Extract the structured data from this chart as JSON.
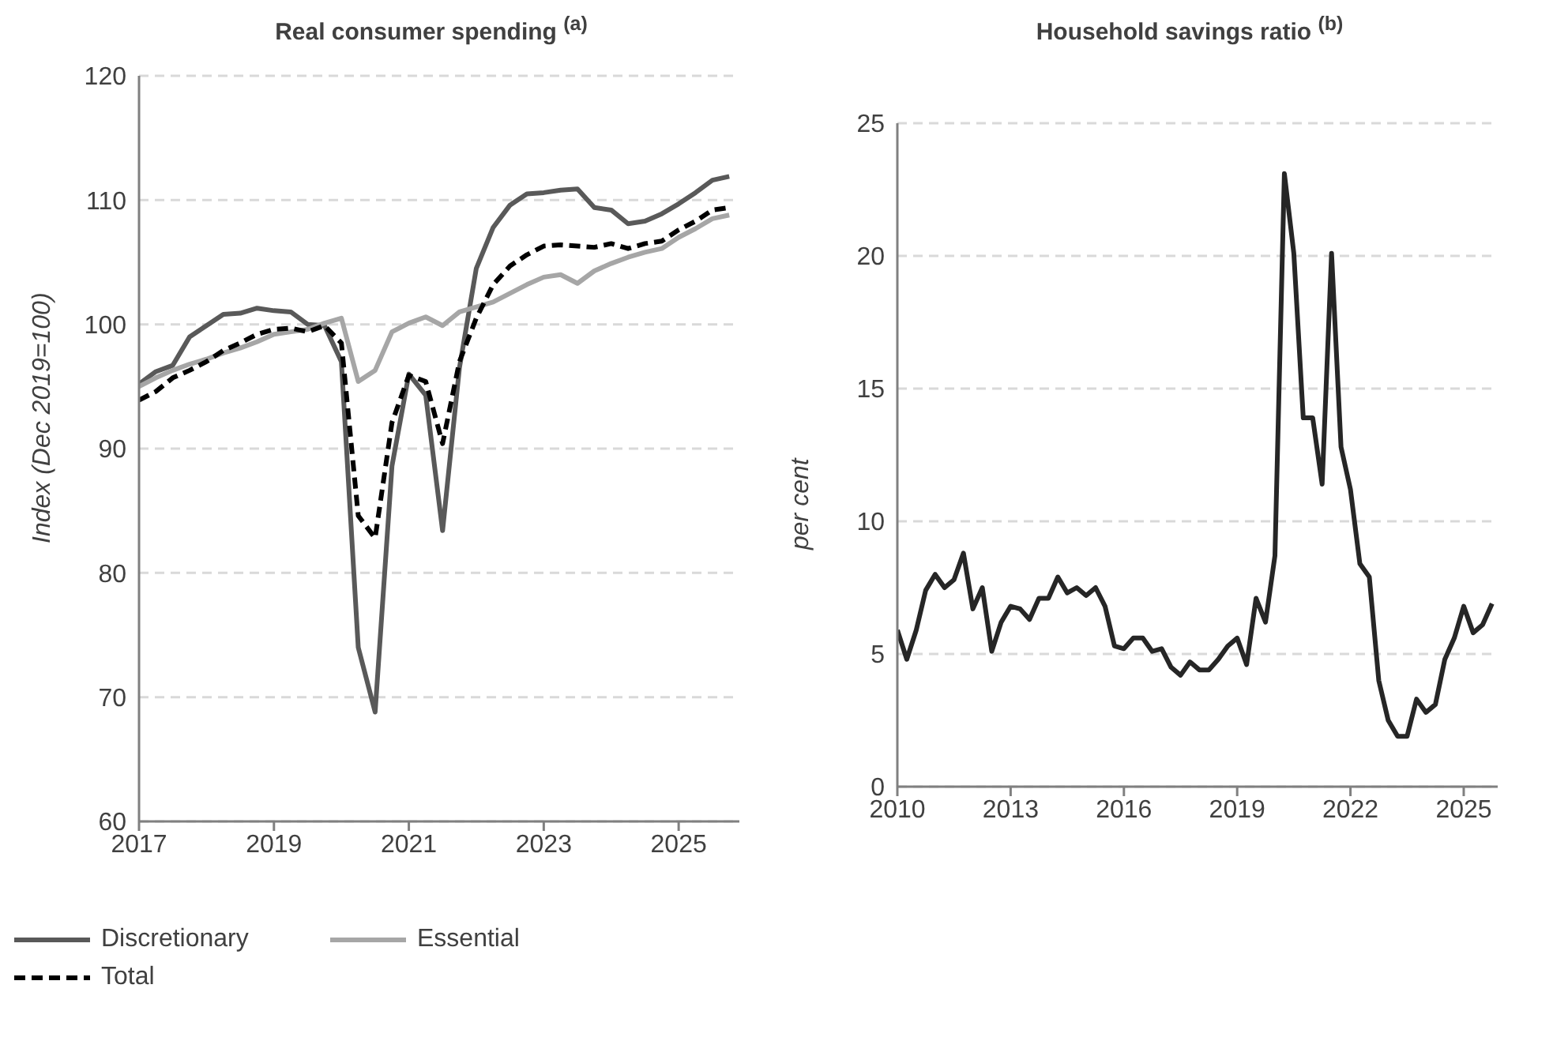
{
  "chart_data": [
    {
      "type": "line",
      "title": "Real consumer spending $^{(a)}$",
      "ylabel": "Index (Dec 2019=100)",
      "xlim": [
        2017,
        2025.9
      ],
      "xticks": [
        2017,
        2019,
        2021,
        2023,
        2025
      ],
      "ylim": [
        60,
        120
      ],
      "yticks": [
        60,
        70,
        80,
        90,
        100,
        110,
        120
      ],
      "grid": "y",
      "legend": "bottom",
      "marker": "none",
      "x": [
        2017,
        2017.25,
        2017.5,
        2017.75,
        2018,
        2018.25,
        2018.5,
        2018.75,
        2019,
        2019.25,
        2019.5,
        2019.75,
        2020,
        2020.25,
        2020.5,
        2020.75,
        2021,
        2021.25,
        2021.5,
        2021.75,
        2022,
        2022.25,
        2022.5,
        2022.75,
        2023,
        2023.25,
        2023.5,
        2023.75,
        2024,
        2024.25,
        2024.5,
        2024.75,
        2025,
        2025.25,
        2025.5,
        2025.75
      ],
      "series": [
        {
          "name": "Discretionary",
          "color": "#595959",
          "line_style": "solid",
          "values": [
            95.2,
            96.2,
            96.7,
            99.0,
            99.9,
            100.8,
            100.9,
            101.3,
            101.1,
            101.0,
            100.0,
            99.9,
            97.0,
            74.0,
            68.8,
            88.6,
            96.0,
            94.3,
            83.4,
            96.5,
            104.5,
            107.8,
            109.6,
            110.5,
            110.6,
            110.8,
            110.9,
            109.4,
            109.2,
            108.1,
            108.3,
            108.9,
            109.7,
            110.6,
            111.6,
            111.9
          ]
        },
        {
          "name": "Essential",
          "color": "#a6a6a6",
          "line_style": "solid",
          "values": [
            95.0,
            95.7,
            96.3,
            96.8,
            97.2,
            97.7,
            98.1,
            98.6,
            99.2,
            99.4,
            99.6,
            100.1,
            100.5,
            95.4,
            96.3,
            99.4,
            100.1,
            100.6,
            99.9,
            101.0,
            101.4,
            101.8,
            102.5,
            103.2,
            103.8,
            104.0,
            103.3,
            104.3,
            104.9,
            105.4,
            105.8,
            106.1,
            107.0,
            107.7,
            108.5,
            108.8
          ]
        },
        {
          "name": "Total",
          "color": "#000000",
          "line_style": "dashed",
          "values": [
            93.9,
            94.6,
            95.7,
            96.3,
            97.0,
            97.9,
            98.5,
            99.2,
            99.6,
            99.7,
            99.4,
            99.9,
            98.5,
            84.6,
            82.8,
            92.1,
            95.9,
            95.4,
            90.4,
            97.0,
            100.5,
            103.2,
            104.7,
            105.6,
            106.3,
            106.4,
            106.3,
            106.2,
            106.5,
            106.1,
            106.5,
            106.7,
            107.6,
            108.3,
            109.2,
            109.4
          ]
        }
      ]
    },
    {
      "type": "line",
      "title": "Household savings ratio $^{(b)}$",
      "ylabel": "per cent",
      "xlim": [
        2010,
        2025.9
      ],
      "xticks": [
        2010,
        2013,
        2016,
        2019,
        2022,
        2025
      ],
      "ylim": [
        0,
        25
      ],
      "yticks": [
        0,
        5,
        10,
        15,
        20,
        25
      ],
      "grid": "y",
      "marker": "none",
      "x": [
        2010,
        2010.25,
        2010.5,
        2010.75,
        2011,
        2011.25,
        2011.5,
        2011.75,
        2012,
        2012.25,
        2012.5,
        2012.75,
        2013,
        2013.25,
        2013.5,
        2013.75,
        2014,
        2014.25,
        2014.5,
        2014.75,
        2015,
        2015.25,
        2015.5,
        2015.75,
        2016,
        2016.25,
        2016.5,
        2016.75,
        2017,
        2017.25,
        2017.5,
        2017.75,
        2018,
        2018.25,
        2018.5,
        2018.75,
        2019,
        2019.25,
        2019.5,
        2019.75,
        2020,
        2020.25,
        2020.5,
        2020.75,
        2021,
        2021.25,
        2021.5,
        2021.75,
        2022,
        2022.25,
        2022.5,
        2022.75,
        2023,
        2023.25,
        2023.5,
        2023.75,
        2024,
        2024.25,
        2024.5,
        2024.75,
        2025,
        2025.25,
        2025.5,
        2025.75
      ],
      "series": [
        {
          "color": "#262626",
          "line_style": "solid",
          "values": [
            5.9,
            4.8,
            5.9,
            7.4,
            8.0,
            7.5,
            7.8,
            8.8,
            6.7,
            7.5,
            5.1,
            6.2,
            6.8,
            6.7,
            6.3,
            7.1,
            7.1,
            7.9,
            7.3,
            7.5,
            7.2,
            7.5,
            6.8,
            5.3,
            5.2,
            5.6,
            5.6,
            5.1,
            5.2,
            4.5,
            4.2,
            4.7,
            4.4,
            4.4,
            4.8,
            5.3,
            5.6,
            4.6,
            7.1,
            6.2,
            8.7,
            23.1,
            20.1,
            13.9,
            13.9,
            11.4,
            20.1,
            12.8,
            11.2,
            8.4,
            7.9,
            4.0,
            2.5,
            1.9,
            1.9,
            3.3,
            2.8,
            3.1,
            4.8,
            5.6,
            6.8,
            5.8,
            6.1,
            6.9
          ]
        }
      ]
    }
  ]
}
